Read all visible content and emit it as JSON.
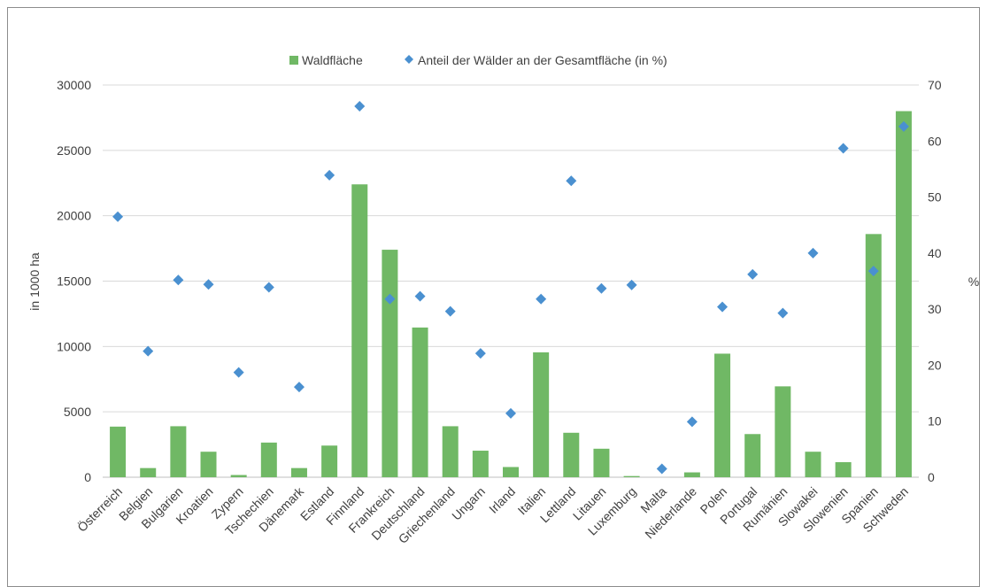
{
  "chart_data": {
    "type": "bar",
    "categories": [
      "Österreich",
      "Belgien",
      "Bulgarien",
      "Kroatien",
      "Zypern",
      "Tschechien",
      "Dänemark",
      "Estland",
      "Finnland",
      "Frankreich",
      "Deutschland",
      "Griechenland",
      "Ungarn",
      "Irland",
      "Italien",
      "Lettland",
      "Litauen",
      "Luxemburg",
      "Malta",
      "Niederlande",
      "Polen",
      "Portugal",
      "Rumänien",
      "Slowakei",
      "Slowenien",
      "Spanien",
      "Schweden"
    ],
    "series": [
      {
        "name": "Waldfläche",
        "chart_type": "bar",
        "axis": "left",
        "color": "#70b865",
        "values": [
          3870,
          700,
          3900,
          1950,
          170,
          2650,
          700,
          2420,
          22400,
          17400,
          11450,
          3900,
          2030,
          780,
          9550,
          3400,
          2180,
          90,
          0,
          370,
          9450,
          3300,
          6950,
          1950,
          1150,
          18600,
          28000
        ]
      },
      {
        "name": "Anteil der Wälder an der Gesamtfläche (in %)",
        "chart_type": "scatter",
        "axis": "right",
        "marker": "diamond",
        "color": "#4a90d0",
        "values": [
          46.5,
          22.5,
          35.2,
          34.4,
          18.7,
          33.9,
          16.1,
          53.9,
          66.2,
          31.8,
          32.3,
          29.6,
          22.1,
          11.4,
          31.8,
          52.9,
          33.7,
          34.3,
          1.5,
          9.9,
          30.4,
          36.2,
          29.3,
          40.0,
          58.7,
          36.8,
          62.6
        ]
      }
    ],
    "y_left": {
      "label": "in 1000 ha",
      "ylim": [
        0,
        30000
      ],
      "ticks": [
        0,
        5000,
        10000,
        15000,
        20000,
        25000,
        30000
      ]
    },
    "y_right": {
      "label": "%",
      "ylim": [
        0,
        70
      ],
      "ticks": [
        0,
        10,
        20,
        30,
        40,
        50,
        60,
        70
      ]
    },
    "grid": true,
    "legend": "top-center"
  }
}
